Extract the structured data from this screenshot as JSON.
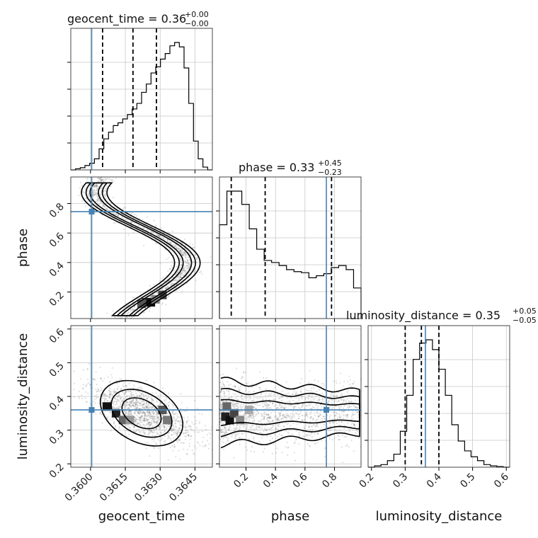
{
  "chart_data": {
    "type": "corner",
    "parameters": [
      {
        "name": "geocent_time",
        "range": [
          0.35915,
          0.36525
        ],
        "ticks": [
          0.36,
          0.3615,
          0.363,
          0.3645
        ],
        "tick_labels": [
          "0.3600",
          "0.3615",
          "0.3630",
          "0.3645"
        ],
        "truth": 0.36005,
        "quantiles": [
          0.36052,
          0.36183,
          0.36284
        ]
      },
      {
        "name": "phase",
        "range": [
          0.02,
          0.98
        ],
        "ticks": [
          0.2,
          0.4,
          0.6,
          0.8
        ],
        "tick_labels": [
          "0.2",
          "0.4",
          "0.6",
          "0.8"
        ],
        "truth": 0.745,
        "quantiles": [
          0.1,
          0.33,
          0.78
        ]
      },
      {
        "name": "luminosity_distance",
        "range": [
          0.19,
          0.61
        ],
        "ticks": [
          0.2,
          0.3,
          0.4,
          0.5,
          0.6
        ],
        "tick_labels": [
          "0.2",
          "0.3",
          "0.4",
          "0.5",
          "0.6"
        ],
        "truth": 0.36,
        "quantiles": [
          0.3,
          0.348,
          0.4
        ]
      }
    ],
    "titles": [
      {
        "main": "geocent_time = 0.36",
        "upper": "+0.00",
        "lower": "−0.00"
      },
      {
        "main": "phase = 0.33",
        "upper": "+0.45",
        "lower": "−0.23"
      },
      {
        "main": "luminosity_distance = 0.35",
        "upper": "+0.05",
        "lower": "−0.05"
      }
    ],
    "histograms": [
      {
        "param": "geocent_time",
        "counts": [
          0,
          2,
          4,
          8,
          12,
          20,
          38,
          56,
          68,
          80,
          85,
          92,
          100,
          110,
          120,
          140,
          155,
          175,
          186,
          200,
          210,
          224,
          230,
          222,
          184,
          120,
          52,
          20,
          5,
          0
        ]
      },
      {
        "param": "phase",
        "counts": [
          92,
          125,
          125,
          112,
          88,
          68,
          57,
          55,
          52,
          48,
          46,
          45,
          40,
          42,
          44,
          50,
          52,
          48,
          30
        ]
      },
      {
        "param": "luminosity_distance",
        "counts": [
          0,
          2,
          4,
          10,
          20,
          55,
          110,
          165,
          190,
          195,
          180,
          150,
          110,
          65,
          40,
          25,
          16,
          10,
          4,
          2,
          1,
          0
        ]
      }
    ]
  }
}
